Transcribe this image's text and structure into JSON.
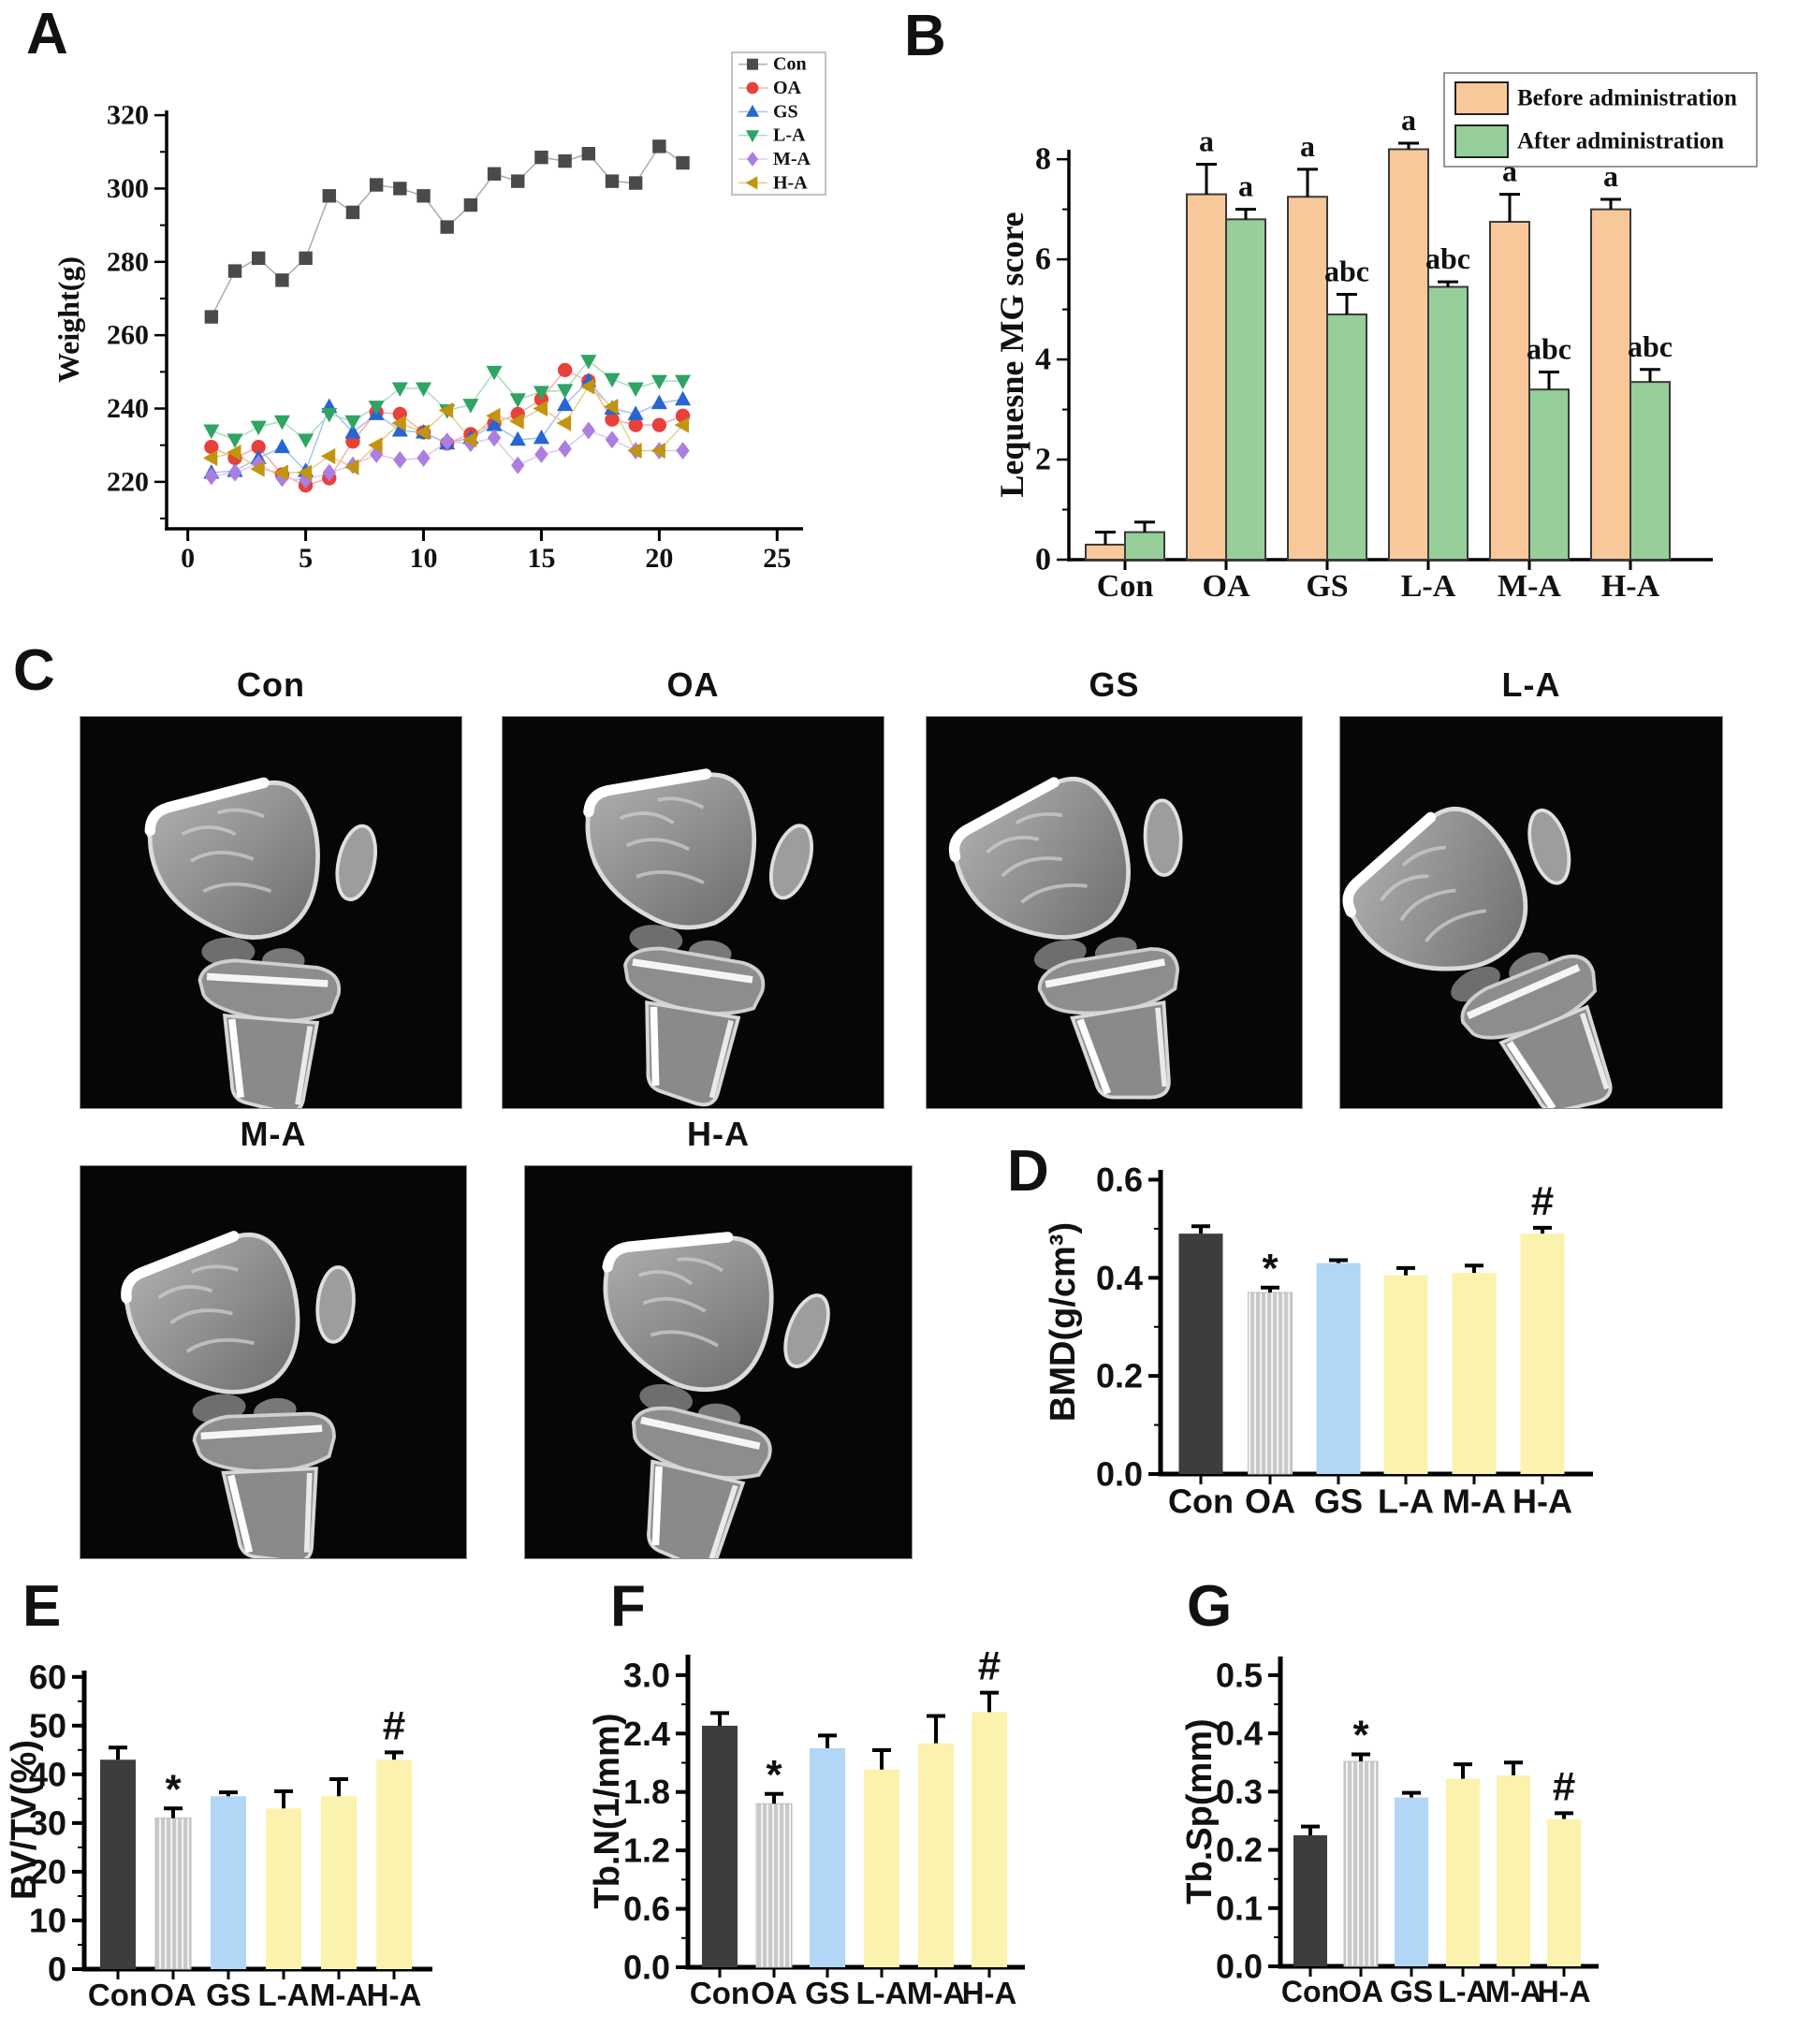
{
  "figure": {
    "panel_letters": {
      "a": "A",
      "b": "B",
      "c": "C",
      "d": "D",
      "e": "E",
      "f": "F",
      "g": "G"
    },
    "background": "#ffffff"
  },
  "microct": {
    "items": [
      {
        "label": "Con"
      },
      {
        "label": "OA"
      },
      {
        "label": "GS"
      },
      {
        "label": "L-A"
      },
      {
        "label": "M-A"
      },
      {
        "label": "H-A"
      }
    ]
  },
  "chart_data": [
    {
      "id": "A",
      "type": "line",
      "font": "serif",
      "title": "",
      "xlabel": "",
      "ylabel": "Weight(g)",
      "ylim": [
        207.2,
        321.3
      ],
      "yticks": [
        220,
        240,
        260,
        280,
        300,
        320
      ],
      "yminor": 10,
      "ydecimals": 0,
      "xlim": [
        -0.9,
        26.1
      ],
      "xticks": [
        0,
        5,
        10,
        15,
        20,
        25
      ],
      "legend_position": "top-right",
      "x": [
        1,
        2,
        3,
        4,
        5,
        6,
        7,
        8,
        9,
        10,
        11,
        12,
        13,
        14,
        15,
        16,
        17,
        18,
        19,
        20,
        21
      ],
      "series": [
        {
          "name": "Con",
          "marker": "square",
          "color": "#4a4a4a",
          "line_color": "#aaaaaa",
          "values": [
            265,
            277.5,
            281,
            275,
            281,
            298,
            293.5,
            301,
            300,
            298,
            289.5,
            295.5,
            304,
            302,
            308.5,
            307.5,
            309.5,
            302,
            301.5,
            311.5,
            307
          ]
        },
        {
          "name": "OA",
          "marker": "circle",
          "color": "#e8403a",
          "line_color": "#f3aeab",
          "values": [
            229.5,
            226.5,
            229.5,
            222,
            219,
            221,
            231,
            239,
            238.5,
            233.5,
            230.5,
            233,
            236,
            238.5,
            242.5,
            250.5,
            247.5,
            237,
            235.5,
            235.5,
            238
          ]
        },
        {
          "name": "GS",
          "marker": "triangle-up",
          "color": "#2766d2",
          "line_color": "#a8c2ec",
          "values": [
            222.5,
            223,
            226.5,
            229.5,
            223,
            240.5,
            233.5,
            238.5,
            234,
            233.5,
            230.5,
            232,
            235.5,
            231.5,
            232,
            241,
            247.5,
            240,
            238.5,
            241.5,
            242.5
          ]
        },
        {
          "name": "L-A",
          "marker": "triangle-down",
          "color": "#2fa463",
          "line_color": "#aadcc2",
          "values": [
            234,
            231.5,
            235,
            236.5,
            231.5,
            238.5,
            236.5,
            240.5,
            245.5,
            245.5,
            239.5,
            241,
            250,
            242.5,
            244.5,
            245,
            253,
            248,
            245.5,
            247.5,
            247.5
          ]
        },
        {
          "name": "M-A",
          "marker": "diamond",
          "color": "#ab7ee0",
          "line_color": "#dbc9f2",
          "values": [
            221.5,
            222.5,
            225,
            221,
            220.5,
            222.5,
            224.5,
            227.5,
            226,
            226.5,
            231,
            230.5,
            232,
            224.5,
            227.5,
            229,
            234,
            231.5,
            228.5,
            228.5,
            228.5
          ]
        },
        {
          "name": "H-A",
          "marker": "triangle-left",
          "color": "#c09511",
          "line_color": "#e4cf8d",
          "values": [
            226.5,
            228,
            223.5,
            222.5,
            222.5,
            227,
            224,
            230,
            236,
            233.5,
            239.5,
            231.5,
            238,
            236.5,
            240,
            236,
            246,
            240.5,
            228.5,
            228.5,
            235.5
          ]
        }
      ]
    },
    {
      "id": "B",
      "type": "bar",
      "grouped": true,
      "font": "serif",
      "title": "",
      "ylabel": "Lequesne MG score",
      "categories": [
        "Con",
        "OA",
        "GS",
        "L-A",
        "M-A",
        "H-A"
      ],
      "ylim": [
        0,
        8.19
      ],
      "yticks": [
        0,
        2,
        4,
        6,
        8
      ],
      "yminor": 1,
      "ydecimals": 0,
      "legend_position": "top-right",
      "series": [
        {
          "name": "Before administration",
          "color": "#f8c89a",
          "values": [
            0.3,
            7.3,
            7.25,
            8.2,
            6.75,
            7.0
          ],
          "errors": [
            0.25,
            0.6,
            0.55,
            0.12,
            0.55,
            0.2
          ],
          "annotations": [
            "",
            "a",
            "a",
            "a",
            "a",
            "a"
          ]
        },
        {
          "name": "After administration",
          "color": "#96cf9a",
          "values": [
            0.55,
            6.8,
            4.9,
            5.45,
            3.4,
            3.55
          ],
          "errors": [
            0.2,
            0.2,
            0.4,
            0.1,
            0.35,
            0.25
          ],
          "annotations": [
            "",
            "a",
            "abc",
            "abc",
            "abc",
            "abc"
          ]
        }
      ]
    },
    {
      "id": "D",
      "type": "bar",
      "font": "sans",
      "ylabel": "BMD(g/cm³)",
      "categories": [
        "Con",
        "OA",
        "GS",
        "L-A",
        "M-A",
        "H-A"
      ],
      "ylim": [
        0,
        0.62
      ],
      "yticks": [
        0,
        0.2,
        0.4,
        0.6
      ],
      "yminor": 0.1,
      "ydecimals": 1,
      "values": [
        0.49,
        0.37,
        0.43,
        0.405,
        0.41,
        0.49
      ],
      "errors": [
        0.015,
        0.01,
        0.006,
        0.015,
        0.015,
        0.012
      ],
      "annotations": [
        "",
        "*",
        "",
        "",
        "",
        "#"
      ],
      "bar_colors": [
        "#3d3d3d",
        "#c9c9c9",
        "#b2d6f5",
        "#fbf2ae",
        "#fbf2ae",
        "#fbf2ae"
      ],
      "hatched": [
        false,
        true,
        false,
        false,
        false,
        false
      ]
    },
    {
      "id": "E",
      "type": "bar",
      "font": "sans",
      "ylabel": "BV/TV(%)",
      "categories": [
        "Con",
        "OA",
        "GS",
        "L-A",
        "M-A",
        "H-A"
      ],
      "ylim": [
        0,
        61.3
      ],
      "yticks": [
        0,
        10,
        20,
        30,
        40,
        50,
        60
      ],
      "yminor": 5,
      "ydecimals": 0,
      "values": [
        43,
        31,
        35.5,
        33,
        35.5,
        43
      ],
      "errors": [
        2.5,
        2,
        0.8,
        3.5,
        3.5,
        1.5
      ],
      "annotations": [
        "",
        "*",
        "",
        "",
        "",
        "#"
      ],
      "bar_colors": [
        "#3d3d3d",
        "#c9c9c9",
        "#b2d6f5",
        "#fbf2ae",
        "#fbf2ae",
        "#fbf2ae"
      ],
      "hatched": [
        false,
        true,
        false,
        false,
        false,
        false
      ]
    },
    {
      "id": "F",
      "type": "bar",
      "font": "sans",
      "ylabel": "Tb.N(1/mm)",
      "categories": [
        "Con",
        "OA",
        "GS",
        "L-A",
        "M-A",
        "H-A"
      ],
      "ylim": [
        0,
        3.21
      ],
      "yticks": [
        0,
        0.6,
        1.2,
        1.8,
        2.4,
        3.0
      ],
      "yminor": 0.3,
      "ydecimals": 1,
      "values": [
        2.48,
        1.68,
        2.25,
        2.03,
        2.3,
        2.62
      ],
      "errors": [
        0.13,
        0.1,
        0.13,
        0.2,
        0.28,
        0.2
      ],
      "annotations": [
        "",
        "*",
        "",
        "",
        "",
        "#"
      ],
      "bar_colors": [
        "#3d3d3d",
        "#c9c9c9",
        "#b2d6f5",
        "#fbf2ae",
        "#fbf2ae",
        "#fbf2ae"
      ],
      "hatched": [
        false,
        true,
        false,
        false,
        false,
        false
      ]
    },
    {
      "id": "G",
      "type": "bar",
      "font": "sans",
      "ylabel": "Tb.Sp(mm)",
      "categories": [
        "Con",
        "OA",
        "GS",
        "L-A",
        "M-A",
        "H-A"
      ],
      "ylim": [
        0,
        0.532
      ],
      "yticks": [
        0,
        0.1,
        0.2,
        0.3,
        0.4,
        0.5
      ],
      "yminor": 0.05,
      "ydecimals": 1,
      "values": [
        0.225,
        0.352,
        0.29,
        0.322,
        0.328,
        0.253
      ],
      "errors": [
        0.015,
        0.012,
        0.008,
        0.025,
        0.022,
        0.01
      ],
      "annotations": [
        "",
        "*",
        "",
        "",
        "",
        "#"
      ],
      "bar_colors": [
        "#3d3d3d",
        "#c9c9c9",
        "#b2d6f5",
        "#fbf2ae",
        "#fbf2ae",
        "#fbf2ae"
      ],
      "hatched": [
        false,
        true,
        false,
        false,
        false,
        false
      ]
    }
  ]
}
